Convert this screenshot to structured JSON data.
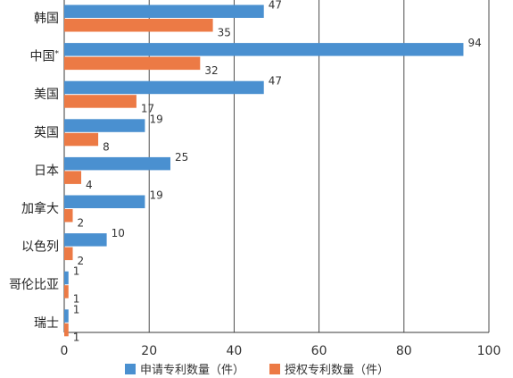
{
  "chart_data": {
    "type": "bar",
    "orientation": "horizontal",
    "categories": [
      "韩国",
      "中国*",
      "美国",
      "英国",
      "日本",
      "加拿大",
      "以色列",
      "哥伦比亚",
      "瑞士"
    ],
    "series": [
      {
        "name": "申请专利数量（件）",
        "color": "#4a90d0",
        "values": [
          47,
          94,
          47,
          19,
          25,
          19,
          10,
          1,
          1
        ]
      },
      {
        "name": "授权专利数量（件）",
        "color": "#ec7a45",
        "values": [
          35,
          32,
          17,
          8,
          4,
          2,
          2,
          1,
          1
        ]
      }
    ],
    "xlim": [
      0,
      100
    ],
    "xticks": [
      0,
      20,
      40,
      60,
      80,
      100
    ],
    "grid": "vertical",
    "legend_position": "bottom"
  }
}
